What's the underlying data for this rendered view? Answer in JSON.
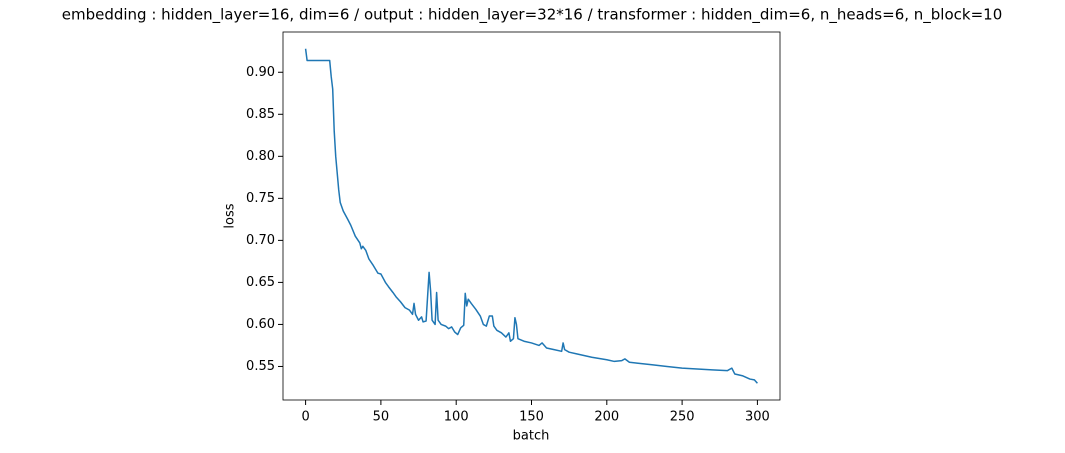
{
  "chart_data": {
    "type": "line",
    "title": "embedding : hidden_layer=16, dim=6 / output : hidden_layer=32*16 / transformer : hidden_dim=6, n_heads=6, n_block=10",
    "x_label": "batch",
    "y_label": "loss",
    "color": "#1f77b4",
    "x": [
      0,
      1,
      16,
      17,
      18,
      19,
      20,
      22,
      23,
      25,
      28,
      30,
      33,
      36,
      37,
      38,
      40,
      42,
      45,
      48,
      50,
      53,
      55,
      58,
      60,
      63,
      66,
      69,
      71,
      72,
      73,
      75,
      77,
      78,
      80,
      82,
      83,
      84,
      86,
      87,
      88,
      90,
      93,
      95,
      97,
      99,
      101,
      103,
      105,
      106,
      107,
      108,
      110,
      113,
      116,
      118,
      120,
      122,
      124,
      125,
      127,
      130,
      133,
      135,
      136,
      138,
      139,
      140,
      141,
      145,
      150,
      155,
      157,
      160,
      165,
      170,
      171,
      172,
      175,
      180,
      190,
      200,
      205,
      210,
      212,
      215,
      220,
      230,
      240,
      250,
      260,
      270,
      280,
      283,
      285,
      290,
      295,
      298,
      300
    ],
    "values": [
      0.928,
      0.914,
      0.914,
      0.895,
      0.88,
      0.83,
      0.8,
      0.76,
      0.745,
      0.735,
      0.725,
      0.718,
      0.705,
      0.697,
      0.69,
      0.693,
      0.688,
      0.678,
      0.67,
      0.661,
      0.66,
      0.65,
      0.645,
      0.638,
      0.633,
      0.627,
      0.62,
      0.617,
      0.612,
      0.625,
      0.612,
      0.605,
      0.609,
      0.603,
      0.604,
      0.662,
      0.64,
      0.605,
      0.6,
      0.638,
      0.605,
      0.6,
      0.598,
      0.595,
      0.597,
      0.591,
      0.588,
      0.596,
      0.599,
      0.637,
      0.622,
      0.63,
      0.625,
      0.618,
      0.61,
      0.6,
      0.598,
      0.61,
      0.61,
      0.598,
      0.593,
      0.59,
      0.585,
      0.59,
      0.58,
      0.583,
      0.608,
      0.6,
      0.583,
      0.58,
      0.578,
      0.575,
      0.578,
      0.572,
      0.57,
      0.568,
      0.578,
      0.57,
      0.567,
      0.565,
      0.561,
      0.558,
      0.556,
      0.557,
      0.559,
      0.555,
      0.554,
      0.552,
      0.55,
      0.548,
      0.547,
      0.546,
      0.545,
      0.548,
      0.541,
      0.539,
      0.535,
      0.534,
      0.53
    ],
    "xlim": [
      -15,
      315
    ],
    "xticks": [
      0,
      50,
      100,
      150,
      200,
      250,
      300
    ],
    "ylim": [
      0.5101,
      0.9479
    ],
    "yticks": [
      0.55,
      {
        "value": 0.6,
        "label": "0.60"
      },
      0.65,
      {
        "value": 0.7,
        "label": "0.70"
      },
      0.75,
      {
        "value": 0.8,
        "label": "0.80"
      },
      0.85,
      {
        "value": 0.9,
        "label": "0.90"
      }
    ]
  }
}
